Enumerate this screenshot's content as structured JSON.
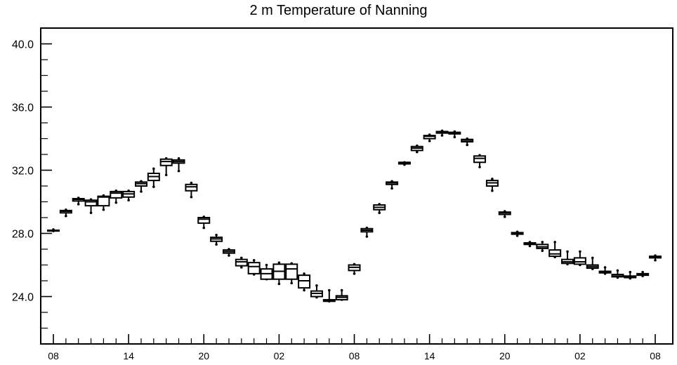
{
  "chart_data": {
    "type": "box",
    "title": "2 m Temperature of Nanning",
    "xlabel": "",
    "ylabel": "",
    "ylim": [
      21.0,
      41.0
    ],
    "xlim": [
      0,
      49.4
    ],
    "y_ticks": [
      "24.0",
      "28.0",
      "32.0",
      "36.0",
      "40.0"
    ],
    "x_ticks": [
      {
        "x": 0,
        "label": "08"
      },
      {
        "x": 6,
        "label": "14"
      },
      {
        "x": 12,
        "label": "20"
      },
      {
        "x": 18,
        "label": "02"
      },
      {
        "x": 24,
        "label": "08"
      },
      {
        "x": 30,
        "label": "14"
      },
      {
        "x": 36,
        "label": "20"
      },
      {
        "x": 42,
        "label": "02"
      },
      {
        "x": 48,
        "label": "08"
      }
    ],
    "grid": false,
    "boxes": [
      {
        "x": 0,
        "min": 28.15,
        "q1": 28.15,
        "median": 28.2,
        "q3": 28.2,
        "max": 28.25
      },
      {
        "x": 1,
        "min": 29.1,
        "q1": 29.3,
        "median": 29.4,
        "q3": 29.45,
        "max": 29.5
      },
      {
        "x": 2,
        "min": 29.85,
        "q1": 30.05,
        "median": 30.15,
        "q3": 30.2,
        "max": 30.25
      },
      {
        "x": 3,
        "min": 29.3,
        "q1": 29.75,
        "median": 30.0,
        "q3": 30.1,
        "max": 30.15
      },
      {
        "x": 4,
        "min": 29.5,
        "q1": 29.75,
        "median": 30.3,
        "q3": 30.35,
        "max": 30.4
      },
      {
        "x": 5,
        "min": 29.95,
        "q1": 30.25,
        "median": 30.55,
        "q3": 30.65,
        "max": 30.7
      },
      {
        "x": 6,
        "min": 30.1,
        "q1": 30.3,
        "median": 30.5,
        "q3": 30.65,
        "max": 30.7
      },
      {
        "x": 7,
        "min": 30.65,
        "q1": 31.0,
        "median": 31.15,
        "q3": 31.25,
        "max": 31.3
      },
      {
        "x": 8,
        "min": 30.95,
        "q1": 31.35,
        "median": 31.6,
        "q3": 31.8,
        "max": 32.1
      },
      {
        "x": 9,
        "min": 31.7,
        "q1": 32.3,
        "median": 32.55,
        "q3": 32.7,
        "max": 32.75
      },
      {
        "x": 10,
        "min": 31.95,
        "q1": 32.45,
        "median": 32.55,
        "q3": 32.65,
        "max": 32.75
      },
      {
        "x": 11,
        "min": 30.3,
        "q1": 30.7,
        "median": 30.95,
        "q3": 31.1,
        "max": 31.2
      },
      {
        "x": 12,
        "min": 28.35,
        "q1": 28.65,
        "median": 28.9,
        "q3": 29.0,
        "max": 29.05
      },
      {
        "x": 13,
        "min": 27.3,
        "q1": 27.5,
        "median": 27.65,
        "q3": 27.75,
        "max": 27.9
      },
      {
        "x": 14,
        "min": 26.6,
        "q1": 26.75,
        "median": 26.85,
        "q3": 26.95,
        "max": 27.0
      },
      {
        "x": 15,
        "min": 25.85,
        "q1": 25.95,
        "median": 26.2,
        "q3": 26.35,
        "max": 26.45
      },
      {
        "x": 16,
        "min": 25.4,
        "q1": 25.45,
        "median": 25.9,
        "q3": 26.15,
        "max": 26.3
      },
      {
        "x": 17,
        "min": 25.1,
        "q1": 25.1,
        "median": 25.45,
        "q3": 25.75,
        "max": 26.0
      },
      {
        "x": 18,
        "min": 24.8,
        "q1": 25.1,
        "median": 25.6,
        "q3": 26.05,
        "max": 26.15
      },
      {
        "x": 19,
        "min": 24.85,
        "q1": 25.1,
        "median": 25.75,
        "q3": 26.05,
        "max": 26.1
      },
      {
        "x": 20,
        "min": 24.4,
        "q1": 24.55,
        "median": 25.0,
        "q3": 25.35,
        "max": 25.45
      },
      {
        "x": 21,
        "min": 23.95,
        "q1": 24.0,
        "median": 24.2,
        "q3": 24.35,
        "max": 24.7
      },
      {
        "x": 22,
        "min": 23.7,
        "q1": 23.7,
        "median": 23.75,
        "q3": 23.8,
        "max": 24.4
      },
      {
        "x": 23,
        "min": 23.8,
        "q1": 23.8,
        "median": 23.95,
        "q3": 24.05,
        "max": 24.4
      },
      {
        "x": 24,
        "min": 25.45,
        "q1": 25.65,
        "median": 25.85,
        "q3": 26.0,
        "max": 26.05
      },
      {
        "x": 25,
        "min": 27.8,
        "q1": 28.1,
        "median": 28.2,
        "q3": 28.3,
        "max": 28.35
      },
      {
        "x": 26,
        "min": 29.3,
        "q1": 29.5,
        "median": 29.65,
        "q3": 29.8,
        "max": 29.85
      },
      {
        "x": 27,
        "min": 30.85,
        "q1": 31.1,
        "median": 31.2,
        "q3": 31.25,
        "max": 31.3
      },
      {
        "x": 28,
        "min": 32.35,
        "q1": 32.4,
        "median": 32.45,
        "q3": 32.5,
        "max": 32.5
      },
      {
        "x": 29,
        "min": 33.15,
        "q1": 33.25,
        "median": 33.4,
        "q3": 33.5,
        "max": 33.55
      },
      {
        "x": 30,
        "min": 33.85,
        "q1": 34.0,
        "median": 34.15,
        "q3": 34.2,
        "max": 34.25
      },
      {
        "x": 31,
        "min": 34.2,
        "q1": 34.35,
        "median": 34.4,
        "q3": 34.45,
        "max": 34.5
      },
      {
        "x": 32,
        "min": 34.1,
        "q1": 34.3,
        "median": 34.35,
        "q3": 34.4,
        "max": 34.45
      },
      {
        "x": 33,
        "min": 33.6,
        "q1": 33.8,
        "median": 33.9,
        "q3": 33.95,
        "max": 34.0
      },
      {
        "x": 34,
        "min": 32.2,
        "q1": 32.5,
        "median": 32.75,
        "q3": 32.9,
        "max": 32.95
      },
      {
        "x": 35,
        "min": 30.7,
        "q1": 31.0,
        "median": 31.2,
        "q3": 31.35,
        "max": 31.45
      },
      {
        "x": 36,
        "min": 29.05,
        "q1": 29.2,
        "median": 29.3,
        "q3": 29.35,
        "max": 29.4
      },
      {
        "x": 37,
        "min": 27.85,
        "q1": 27.95,
        "median": 28.0,
        "q3": 28.05,
        "max": 28.1
      },
      {
        "x": 38,
        "min": 27.2,
        "q1": 27.3,
        "median": 27.35,
        "q3": 27.4,
        "max": 27.45
      },
      {
        "x": 39,
        "min": 26.9,
        "q1": 27.05,
        "median": 27.15,
        "q3": 27.3,
        "max": 27.45
      },
      {
        "x": 40,
        "min": 26.5,
        "q1": 26.55,
        "median": 26.7,
        "q3": 26.95,
        "max": 27.45
      },
      {
        "x": 41,
        "min": 26.05,
        "q1": 26.1,
        "median": 26.2,
        "q3": 26.35,
        "max": 26.85
      },
      {
        "x": 42,
        "min": 26.0,
        "q1": 26.05,
        "median": 26.2,
        "q3": 26.45,
        "max": 26.85
      },
      {
        "x": 43,
        "min": 25.75,
        "q1": 25.8,
        "median": 25.9,
        "q3": 26.0,
        "max": 26.45
      },
      {
        "x": 44,
        "min": 25.45,
        "q1": 25.5,
        "median": 25.55,
        "q3": 25.6,
        "max": 25.85
      },
      {
        "x": 45,
        "min": 25.2,
        "q1": 25.25,
        "median": 25.3,
        "q3": 25.4,
        "max": 25.65
      },
      {
        "x": 46,
        "min": 25.15,
        "q1": 25.2,
        "median": 25.25,
        "q3": 25.3,
        "max": 25.55
      },
      {
        "x": 47,
        "min": 25.3,
        "q1": 25.35,
        "median": 25.4,
        "q3": 25.45,
        "max": 25.55
      },
      {
        "x": 48,
        "min": 26.3,
        "q1": 26.45,
        "median": 26.5,
        "q3": 26.55,
        "max": 26.6
      }
    ]
  }
}
